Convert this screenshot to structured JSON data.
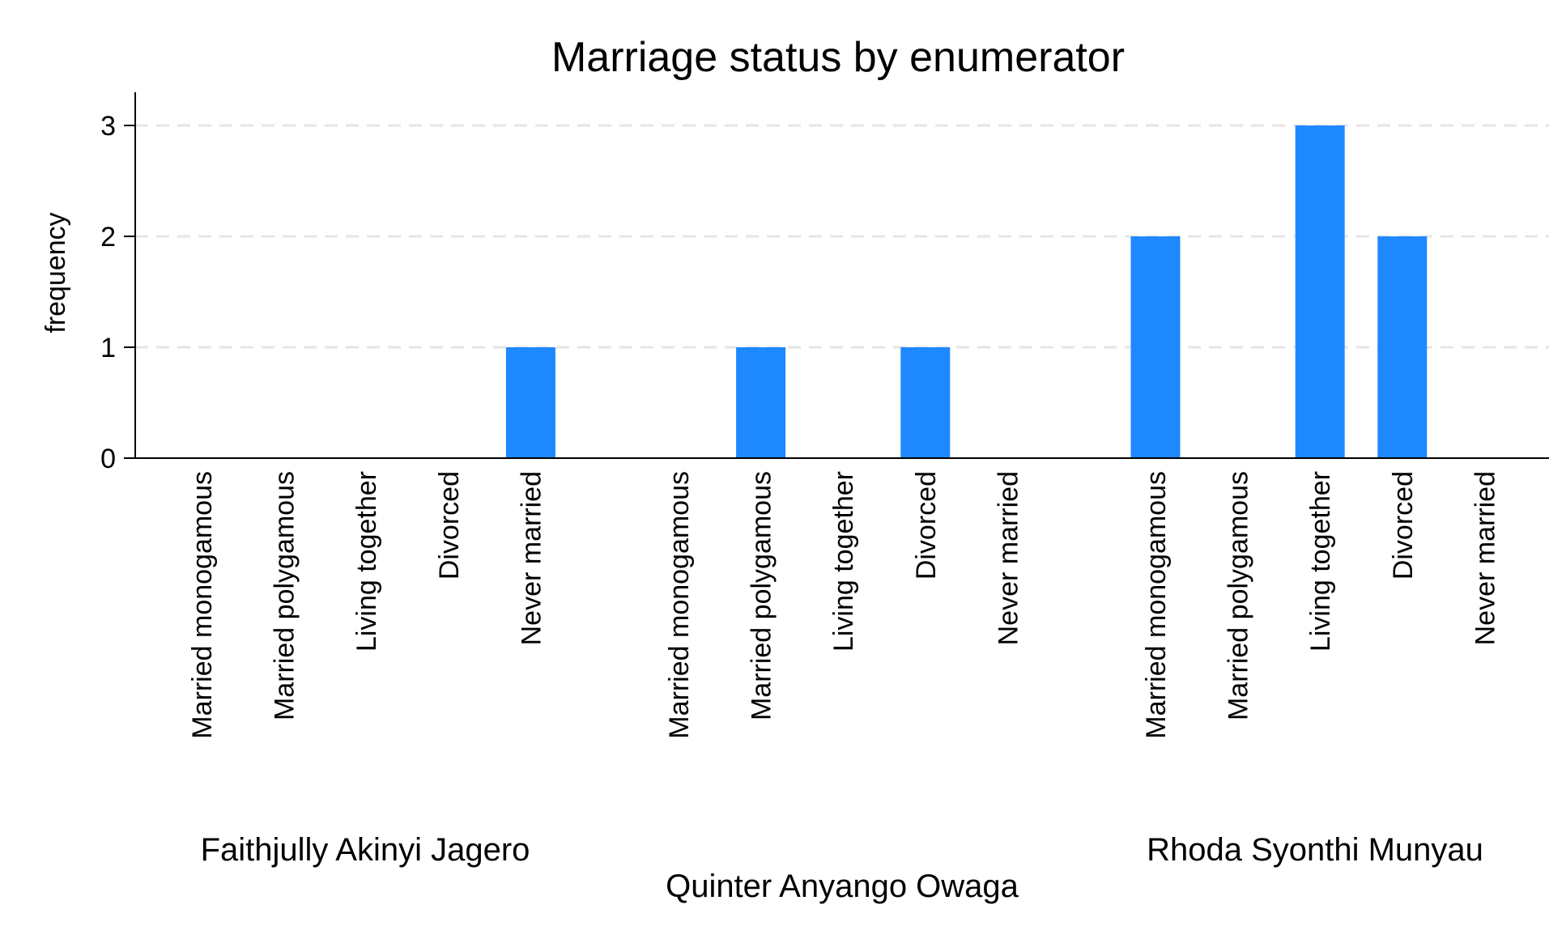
{
  "chart_data": {
    "type": "bar",
    "title": "Marriage status by enumerator",
    "ylabel": "frequency",
    "xlabel": "",
    "ylim": [
      0,
      3.3
    ],
    "yticks": [
      0,
      1,
      2,
      3
    ],
    "grid": true,
    "bar_color": "#1e88ff",
    "groups": [
      {
        "name": "Faithjully Akinyi Jagero",
        "categories": [
          "Married monogamous",
          "Married polygamous",
          "Living together",
          "Divorced",
          "Never married"
        ],
        "values": [
          0,
          0,
          0,
          0,
          1
        ]
      },
      {
        "name": "Quinter Anyango Owaga",
        "categories": [
          "Married monogamous",
          "Married polygamous",
          "Living together",
          "Divorced",
          "Never married"
        ],
        "values": [
          0,
          1,
          0,
          1,
          0
        ]
      },
      {
        "name": "Rhoda Syonthi Munyau",
        "categories": [
          "Married monogamous",
          "Married polygamous",
          "Living together",
          "Divorced",
          "Never married"
        ],
        "values": [
          2,
          0,
          3,
          2,
          0
        ]
      }
    ]
  }
}
